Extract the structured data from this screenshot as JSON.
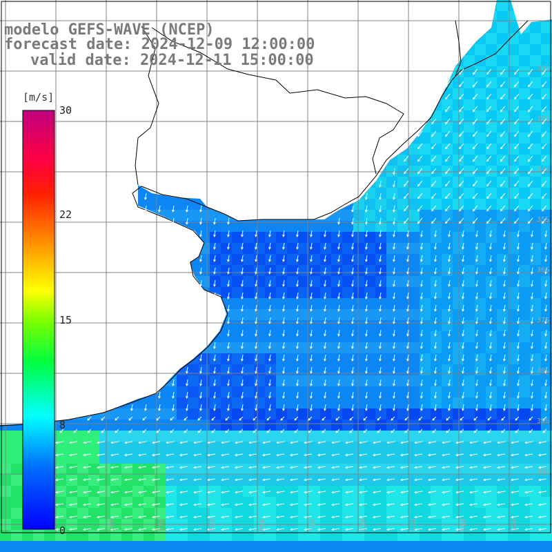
{
  "title": {
    "line1": "modelo GEFS-WAVE (NCEP)",
    "line2": "forecast date: 2024-12-09 12:00:00",
    "line3": "valid date: 2024-12-11 15:00:00"
  },
  "colorbar": {
    "unit": "[m/s]",
    "min": 0,
    "max": 30,
    "ticks": [
      "30",
      "22",
      "15",
      "8",
      "0"
    ],
    "tick_values": [
      30,
      22,
      15,
      8,
      0
    ],
    "colors": [
      "#0000ff",
      "#00a0ff",
      "#00ffff",
      "#00ff00",
      "#ffff00",
      "#ff8000",
      "#ff0000",
      "#c00080"
    ]
  },
  "map": {
    "latitude_labels": [
      "32S",
      "33S",
      "34S",
      "35S",
      "36S",
      "37S",
      "38S",
      "39S",
      "40S"
    ],
    "longitude_labels": [
      "58W",
      "57W",
      "56W",
      "55W",
      "54W",
      "53W",
      "52W",
      "51W",
      "50W"
    ],
    "land_color": "#ffffff",
    "grid_color": "#808080",
    "coastline_color": "#000000",
    "arrow_color": "#ffffff"
  }
}
